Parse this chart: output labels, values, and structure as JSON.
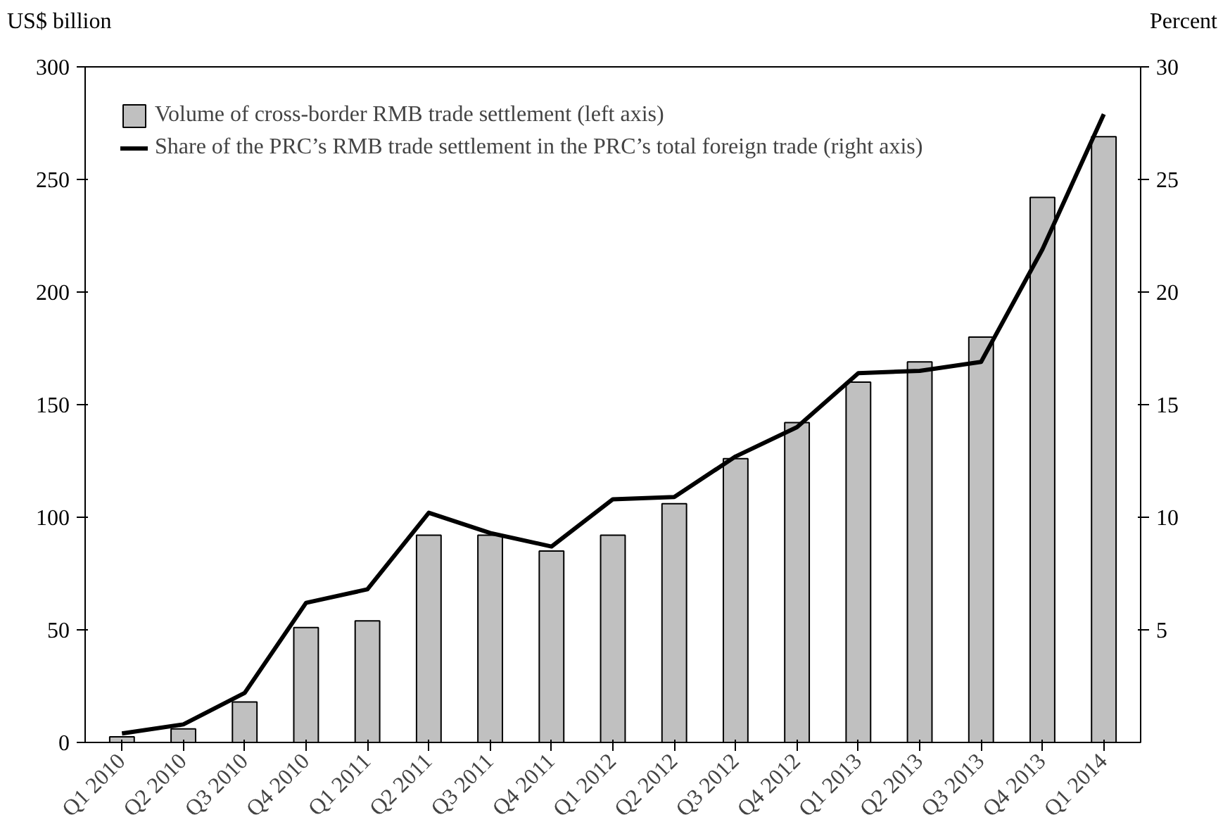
{
  "chart_data": {
    "type": "bar",
    "ylabel": "US$ billion",
    "y2label": "Percent",
    "categories": [
      "Q1 2010",
      "Q2 2010",
      "Q3 2010",
      "Q4 2010",
      "Q1 2011",
      "Q2 2011",
      "Q3 2011",
      "Q4 2011",
      "Q1 2012",
      "Q2 2012",
      "Q3 2012",
      "Q4 2012",
      "Q1 2013",
      "Q2 2013",
      "Q3 2013",
      "Q4 2013",
      "Q1 2014"
    ],
    "series": [
      {
        "name": "Volume of cross-border RMB trade settlement (left axis)",
        "color": "#c0c0c0",
        "values": [
          2.5,
          6,
          18,
          51,
          54,
          92,
          92,
          85,
          92,
          106,
          126,
          142,
          160,
          169,
          180,
          242,
          269
        ]
      },
      {
        "name": "Share of the PRC’s RMB trade settlement in the PRC’s total foreign trade (right axis)",
        "type": "line",
        "axis": "y2",
        "color": "#000000",
        "values": [
          0.4,
          0.8,
          2.2,
          6.2,
          6.8,
          10.2,
          9.3,
          8.7,
          10.8,
          10.9,
          12.7,
          14.0,
          16.4,
          16.5,
          16.9,
          21.9,
          27.9
        ]
      }
    ],
    "ylim": [
      0,
      300
    ],
    "yticks": [
      0,
      50,
      100,
      150,
      200,
      250,
      300
    ],
    "y2lim": [
      0,
      30
    ],
    "y2ticks": [
      5,
      10,
      15,
      20,
      25,
      30
    ],
    "grid": false,
    "legend": "top left"
  }
}
